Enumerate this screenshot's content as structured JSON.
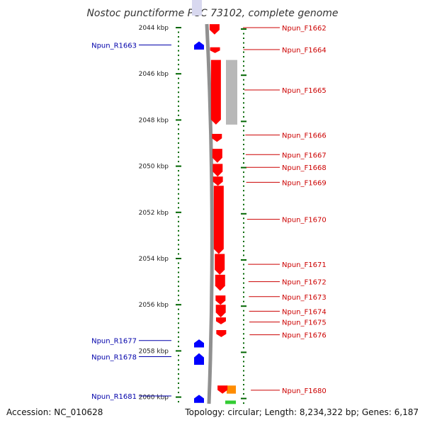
{
  "title": "Nostoc punctiforme PCC 73102, complete genome",
  "footer": {
    "accession": "Accession: NC_010628",
    "topology": "Topology: circular; Length: 8,234,322 bp; Genes: 6,187"
  },
  "colors": {
    "forward_gene": "#ff0000",
    "reverse_gene": "#0000ff",
    "forward_label": "#cc0000",
    "reverse_label": "#0000aa",
    "backbone": "#909090",
    "tick": "#006600",
    "other_feature": "#ff8c00",
    "grey_feature": "#b8b8b8",
    "green_feature": "#33cc33"
  },
  "chart_data": {
    "type": "genome-map",
    "unit": "kbp",
    "range_kbp": [
      2043.6,
      2060.3
    ],
    "ticks": [
      {
        "kbp": 2044,
        "label": "2044 kbp"
      },
      {
        "kbp": 2046,
        "label": "2046 kbp"
      },
      {
        "kbp": 2048,
        "label": "2048 kbp"
      },
      {
        "kbp": 2050,
        "label": "2050 kbp"
      },
      {
        "kbp": 2052,
        "label": "2052 kbp"
      },
      {
        "kbp": 2054,
        "label": "2054 kbp"
      },
      {
        "kbp": 2056,
        "label": "2056 kbp"
      },
      {
        "kbp": 2058,
        "label": "2058 kbp"
      },
      {
        "kbp": 2060,
        "label": "2060 kbp"
      }
    ],
    "forward_genes": [
      {
        "name": "Npun_F1662",
        "start": 2043.85,
        "end": 2044.3,
        "label_kbp": 2044.0
      },
      {
        "name": "Npun_F1664",
        "start": 2044.85,
        "end": 2045.1,
        "label_kbp": 2044.95
      },
      {
        "name": "Npun_F1665",
        "start": 2045.4,
        "end": 2048.2,
        "label_kbp": 2046.7
      },
      {
        "name": "Npun_F1666",
        "start": 2048.6,
        "end": 2048.95,
        "label_kbp": 2048.65
      },
      {
        "name": "Npun_F1667",
        "start": 2049.25,
        "end": 2049.85,
        "label_kbp": 2049.5
      },
      {
        "name": "Npun_F1668",
        "start": 2049.9,
        "end": 2050.45,
        "label_kbp": 2050.05
      },
      {
        "name": "Npun_F1669",
        "start": 2050.45,
        "end": 2050.85,
        "label_kbp": 2050.7
      },
      {
        "name": "Npun_F1670",
        "start": 2050.85,
        "end": 2053.8,
        "label_kbp": 2052.3
      },
      {
        "name": "Npun_F1671",
        "start": 2053.8,
        "end": 2054.7,
        "label_kbp": 2054.25
      },
      {
        "name": "Npun_F1672",
        "start": 2054.7,
        "end": 2055.4,
        "label_kbp": 2055.0
      },
      {
        "name": "Npun_F1673",
        "start": 2055.6,
        "end": 2056.0,
        "label_kbp": 2055.65
      },
      {
        "name": "Npun_F1674",
        "start": 2056.0,
        "end": 2056.55,
        "label_kbp": 2056.28
      },
      {
        "name": "Npun_F1675",
        "start": 2056.55,
        "end": 2056.85,
        "label_kbp": 2056.75
      },
      {
        "name": "Npun_F1676",
        "start": 2057.1,
        "end": 2057.4,
        "label_kbp": 2057.3
      },
      {
        "name": "Npun_F1680",
        "start": 2059.5,
        "end": 2059.85,
        "label_kbp": 2059.7
      }
    ],
    "reverse_genes": [
      {
        "name": "Npun_R1663",
        "start": 2044.6,
        "end": 2044.95,
        "label_kbp": 2044.75
      },
      {
        "name": "Npun_R1677",
        "start": 2057.5,
        "end": 2057.85,
        "label_kbp": 2057.55
      },
      {
        "name": "Npun_R1678",
        "start": 2058.1,
        "end": 2058.6,
        "label_kbp": 2058.25
      },
      {
        "name": "Npun_R1681",
        "start": 2059.9,
        "end": 2060.25,
        "label_kbp": 2059.95
      }
    ],
    "other_features": [
      {
        "kind": "grey",
        "start": 2045.4,
        "end": 2048.2
      },
      {
        "kind": "orange",
        "start": 2059.5,
        "end": 2059.85
      },
      {
        "kind": "green",
        "start": 2060.15,
        "end": 2060.3
      }
    ]
  }
}
